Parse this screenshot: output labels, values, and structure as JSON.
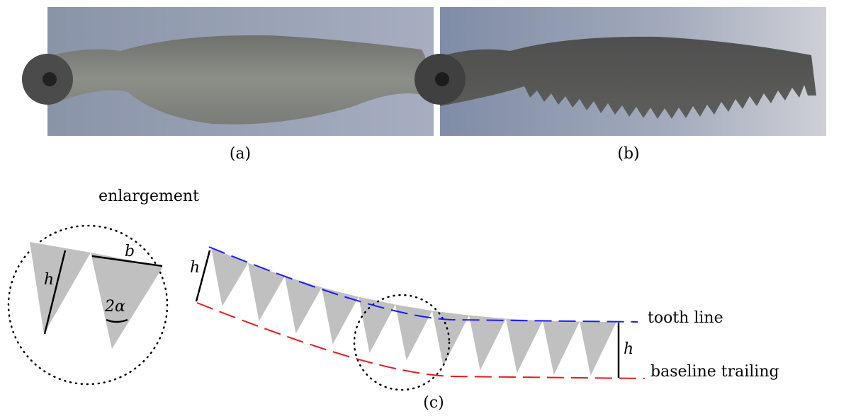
{
  "panels": [
    {
      "caption": "(a)"
    },
    {
      "caption": "(b)"
    },
    {
      "caption": "(c)"
    }
  ],
  "enlargement": {
    "title": "enlargement",
    "h_label": "h",
    "b_label": "b",
    "angle_label": "2α"
  },
  "serration": {
    "h_label_left": "h",
    "h_label_right": "h",
    "tooth_line": "tooth line",
    "baseline": "baseline trailing"
  }
}
